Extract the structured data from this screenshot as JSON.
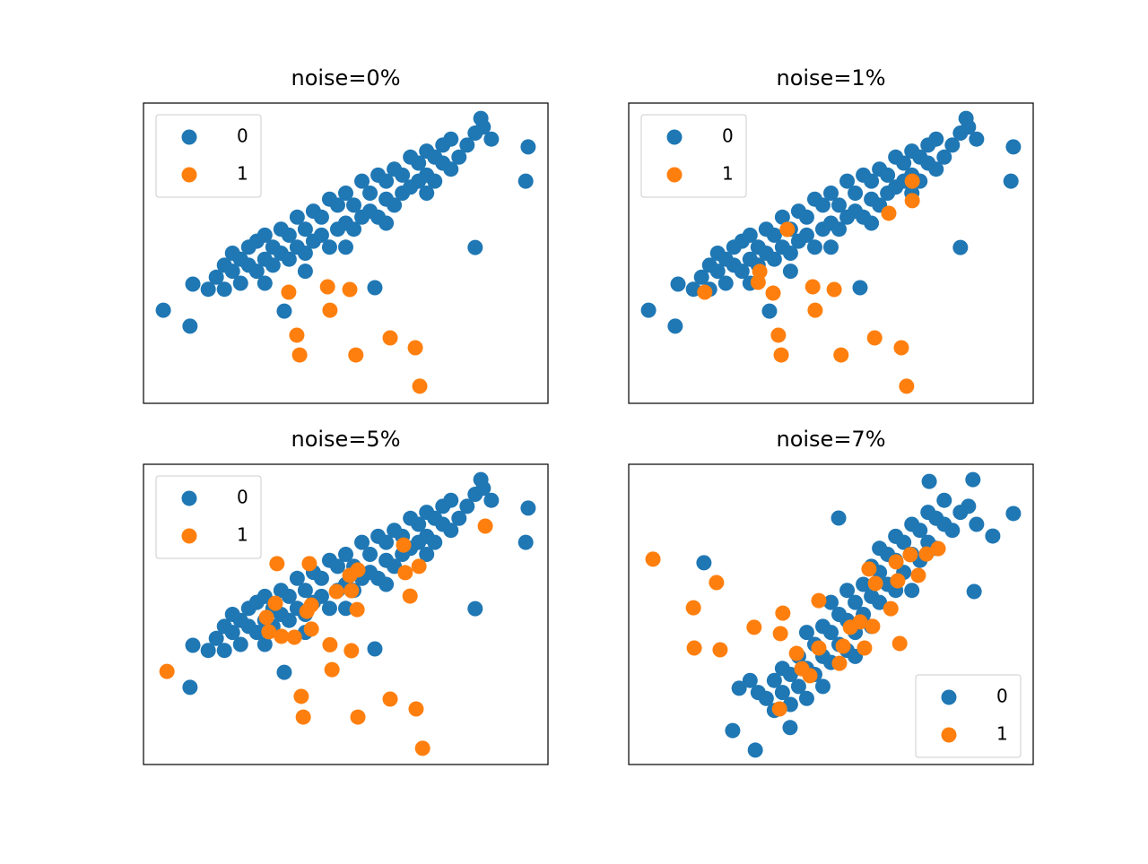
{
  "chart_data": [
    {
      "type": "scatter",
      "title": "noise=0%",
      "xlim": [
        0,
        100
      ],
      "ylim": [
        0,
        100
      ],
      "legend": "upper left",
      "series": [
        {
          "name": "0",
          "color": "#1f77b4",
          "x": [
            18,
            20,
            22,
            22,
            24,
            24,
            26,
            26,
            28,
            28,
            30,
            30,
            32,
            32,
            34,
            34,
            36,
            36,
            38,
            38,
            40,
            40,
            42,
            42,
            44,
            44,
            46,
            46,
            48,
            48,
            50,
            50,
            52,
            52,
            54,
            54,
            56,
            56,
            58,
            58,
            60,
            60,
            62,
            62,
            64,
            64,
            66,
            66,
            68,
            68,
            70,
            70,
            72,
            72,
            74,
            74,
            76,
            76,
            78,
            80,
            82,
            84,
            86,
            20,
            30,
            40,
            16,
            50,
            60,
            70,
            4.9,
            11.5,
            95.1,
            94.5,
            82.0,
            57.2,
            34.8,
            83.4,
            12.2
          ],
          "y": [
            42,
            46,
            44,
            50,
            40,
            48,
            46,
            52,
            44,
            54,
            48,
            56,
            46,
            52,
            50,
            58,
            48,
            56,
            52,
            62,
            50,
            58,
            54,
            64,
            56,
            62,
            52,
            68,
            58,
            66,
            60,
            70,
            58,
            66,
            62,
            74,
            64,
            70,
            62,
            76,
            68,
            74,
            66,
            78,
            70,
            76,
            72,
            82,
            74,
            80,
            76,
            84,
            74,
            82,
            80,
            86,
            78,
            88,
            82,
            86,
            90,
            92,
            88,
            38,
            40,
            44,
            38,
            52,
            60,
            70,
            31.0,
            25.7,
            85.4,
            74.0,
            51.9,
            38.5,
            30.7,
            94.9,
            39.7
          ]
        },
        {
          "name": "1",
          "color": "#ff7f0e",
          "x": [
            35.9,
            45.5,
            51.0,
            46.1,
            37.9,
            38.6,
            52.5,
            60.98,
            67.2,
            68.3
          ],
          "y": [
            37.0,
            38.8,
            37.9,
            31.0,
            22.7,
            16.1,
            16.1,
            21.8,
            18.5,
            5.7
          ]
        }
      ]
    },
    {
      "type": "scatter",
      "title": "noise=1%",
      "xlim": [
        0,
        100
      ],
      "ylim": [
        0,
        100
      ],
      "legend": "upper left",
      "series": [
        {
          "name": "0",
          "color": "#1f77b4",
          "x": [
            18,
            20,
            22,
            22,
            24,
            24,
            26,
            26,
            28,
            28,
            30,
            30,
            32,
            32,
            34,
            34,
            36,
            36,
            38,
            38,
            40,
            40,
            42,
            42,
            44,
            44,
            46,
            46,
            48,
            48,
            50,
            50,
            52,
            52,
            54,
            54,
            56,
            56,
            58,
            58,
            60,
            60,
            62,
            62,
            64,
            64,
            66,
            66,
            68,
            68,
            70,
            70,
            72,
            72,
            74,
            74,
            76,
            76,
            78,
            80,
            82,
            84,
            86,
            20,
            30,
            40,
            16,
            50,
            60,
            70,
            4.9,
            11.5,
            95.1,
            94.5,
            82.0,
            57.2,
            34.8,
            83.4,
            12.2
          ],
          "y": [
            42,
            46,
            44,
            50,
            40,
            48,
            46,
            52,
            44,
            54,
            48,
            56,
            46,
            52,
            50,
            58,
            48,
            56,
            52,
            62,
            50,
            58,
            54,
            64,
            56,
            62,
            52,
            68,
            58,
            66,
            60,
            70,
            58,
            66,
            62,
            74,
            64,
            70,
            62,
            76,
            68,
            74,
            66,
            78,
            70,
            76,
            72,
            82,
            74,
            80,
            76,
            84,
            74,
            82,
            80,
            86,
            78,
            88,
            82,
            86,
            90,
            92,
            88,
            38,
            40,
            44,
            38,
            52,
            60,
            70,
            31.0,
            25.7,
            85.4,
            74.0,
            51.9,
            38.5,
            30.7,
            94.9,
            39.7
          ]
        },
        {
          "name": "1",
          "color": "#ff7f0e",
          "x": [
            39.2,
            32.4,
            32.0,
            18.8,
            35.7,
            45.5,
            50.8,
            46.1,
            64.3,
            70.1,
            70.1,
            37.0,
            37.7,
            52.5,
            60.8,
            67.4,
            68.7
          ],
          "y": [
            57.9,
            43.9,
            40.3,
            37.0,
            36.7,
            38.8,
            37.9,
            31.0,
            63.3,
            74.0,
            67.5,
            22.7,
            16.1,
            16.1,
            21.8,
            18.5,
            5.7
          ]
        }
      ]
    },
    {
      "type": "scatter",
      "title": "noise=5%",
      "xlim": [
        0,
        100
      ],
      "ylim": [
        0,
        100
      ],
      "legend": "upper left",
      "series": [
        {
          "name": "0",
          "color": "#1f77b4",
          "x": [
            18,
            20,
            22,
            22,
            24,
            24,
            26,
            26,
            28,
            28,
            30,
            30,
            32,
            32,
            34,
            34,
            36,
            36,
            38,
            38,
            40,
            40,
            42,
            42,
            44,
            44,
            46,
            46,
            48,
            48,
            50,
            50,
            52,
            52,
            54,
            54,
            56,
            56,
            58,
            58,
            60,
            60,
            62,
            62,
            64,
            64,
            66,
            66,
            68,
            68,
            70,
            70,
            72,
            72,
            74,
            74,
            76,
            76,
            78,
            80,
            82,
            84,
            86,
            20,
            30,
            40,
            16,
            50,
            60,
            70,
            11.5,
            95.1,
            94.5,
            82.0,
            57.2,
            34.8,
            83.4,
            12.2
          ],
          "y": [
            42,
            46,
            44,
            50,
            40,
            48,
            46,
            52,
            44,
            54,
            48,
            56,
            46,
            52,
            50,
            58,
            48,
            56,
            52,
            62,
            50,
            58,
            54,
            64,
            56,
            62,
            52,
            68,
            58,
            66,
            60,
            70,
            58,
            66,
            62,
            74,
            64,
            70,
            62,
            76,
            68,
            74,
            66,
            78,
            70,
            76,
            72,
            82,
            74,
            80,
            76,
            84,
            74,
            82,
            80,
            86,
            78,
            88,
            82,
            86,
            90,
            92,
            88,
            38,
            40,
            44,
            38,
            52,
            60,
            70,
            25.7,
            85.4,
            74.0,
            51.9,
            38.5,
            30.7,
            94.9,
            39.7
          ]
        },
        {
          "name": "1",
          "color": "#ff7f0e",
          "x": [
            5.8,
            33.0,
            41.0,
            30.4,
            32.6,
            31.0,
            34.1,
            37.3,
            41.5,
            40.4,
            41.5,
            46.1,
            46.6,
            51.4,
            47.7,
            51.0,
            53.0,
            52.8,
            51.4,
            64.3,
            64.7,
            68.1,
            65.9,
            84.5,
            39.0,
            39.5,
            53.0,
            60.98,
            67.4,
            69.0
          ],
          "y": [
            31.0,
            66.9,
            66.9,
            49.0,
            53.7,
            44.2,
            42.7,
            42.4,
            45.1,
            51.0,
            53.1,
            39.9,
            31.6,
            37.9,
            57.6,
            63.0,
            64.8,
            51.6,
            57.9,
            73.1,
            63.9,
            66.0,
            56.1,
            79.4,
            22.7,
            15.8,
            15.8,
            21.8,
            18.5,
            5.4
          ]
        }
      ]
    },
    {
      "type": "scatter",
      "title": "noise=7%",
      "xlim": [
        0,
        100
      ],
      "ylim": [
        0,
        100
      ],
      "legend": "lower right",
      "series": [
        {
          "name": "0",
          "color": "#1f77b4",
          "x": [
            34,
            36,
            36,
            38,
            38,
            40,
            40,
            42,
            42,
            44,
            44,
            46,
            46,
            48,
            48,
            48,
            50,
            50,
            52,
            52,
            54,
            54,
            54,
            56,
            56,
            58,
            58,
            60,
            60,
            60,
            62,
            62,
            64,
            64,
            66,
            66,
            66,
            68,
            68,
            70,
            70,
            72,
            72,
            74,
            74,
            76,
            76,
            78,
            78,
            80,
            82,
            84,
            86,
            30,
            32,
            44,
            56,
            70,
            50,
            62,
            18.6,
            51.9,
            25.7,
            31.3,
            39.9,
            74.3,
            85.1,
            85.4,
            90.0,
            95.1,
            27.3
          ],
          "y": [
            22,
            18,
            28,
            24,
            32,
            20,
            30,
            26,
            36,
            22,
            32,
            30,
            40,
            26,
            36,
            46,
            34,
            44,
            40,
            50,
            38,
            48,
            58,
            44,
            54,
            50,
            60,
            46,
            56,
            66,
            54,
            64,
            60,
            70,
            58,
            68,
            76,
            64,
            74,
            70,
            80,
            68,
            78,
            74,
            84,
            72,
            82,
            80,
            88,
            78,
            84,
            86,
            80,
            28,
            24,
            44,
            36,
            58,
            54,
            72,
            67.2,
            82.1,
            11.3,
            4.8,
            12.3,
            94.3,
            94.9,
            57.6,
            76.1,
            83.6,
            25.4
          ]
        },
        {
          "name": "1",
          "color": "#ff7f0e",
          "x": [
            6.0,
            21.7,
            16.0,
            16.2,
            22.6,
            31.0,
            37.3,
            38.1,
            37.5,
            41.5,
            42.8,
            44.8,
            47.0,
            47.0,
            52.1,
            53.0,
            54.8,
            57.2,
            58.3,
            60.3,
            59.4,
            61.0,
            64.8,
            66.5,
            66.1,
            67.0,
            69.6,
            71.6,
            73.6,
            76.5
          ],
          "y": [
            68.4,
            60.6,
            52.2,
            38.8,
            38.2,
            45.7,
            18.5,
            50.4,
            43.6,
            37.0,
            31.9,
            29.6,
            54.6,
            38.8,
            33.7,
            39.4,
            45.7,
            47.5,
            38.8,
            46.0,
            65.1,
            60.3,
            51.9,
            61.2,
            67.5,
            40.3,
            69.9,
            63.0,
            70.1,
            71.9
          ]
        }
      ]
    }
  ]
}
